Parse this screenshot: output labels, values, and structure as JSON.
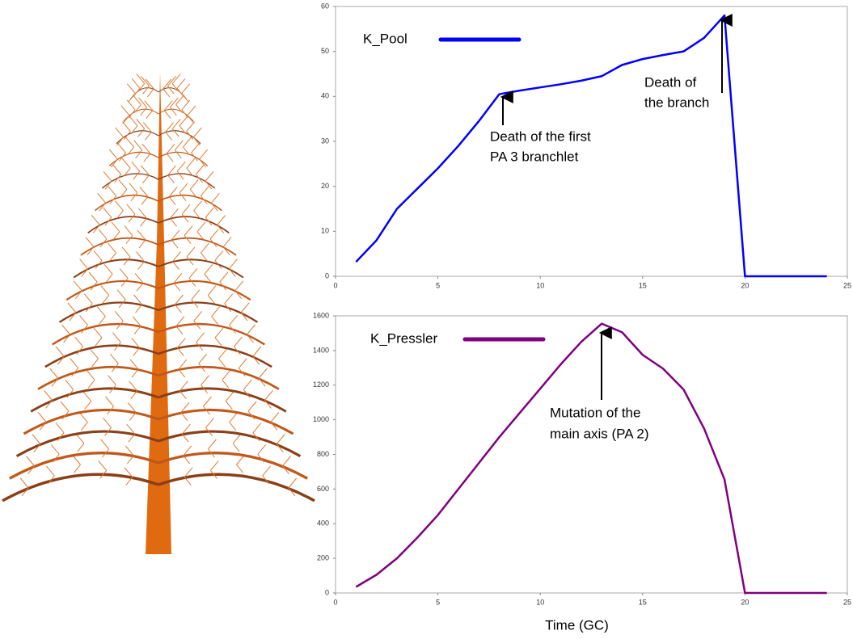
{
  "chart_data": [
    {
      "type": "line",
      "x": [
        1,
        2,
        3,
        4,
        5,
        6,
        7,
        8,
        9,
        10,
        11,
        12,
        13,
        14,
        15,
        16,
        17,
        18,
        19,
        20,
        21,
        22,
        23,
        24
      ],
      "series": [
        {
          "name": "K_Pool",
          "color": "#0000ff",
          "values": [
            3.2,
            8,
            15,
            19.5,
            24,
            29,
            34.5,
            40.5,
            41.3,
            42,
            42.7,
            43.5,
            44.5,
            47,
            48.3,
            49.2,
            50,
            53,
            58,
            0,
            0,
            0,
            0,
            0
          ]
        }
      ],
      "xlim": [
        0,
        25
      ],
      "xticks": [
        0,
        5,
        10,
        15,
        20,
        25
      ],
      "ylim": [
        0,
        60
      ],
      "yticks": [
        0,
        10,
        20,
        30,
        40,
        50,
        60
      ],
      "annotations": [
        {
          "lines": [
            "Death of the first",
            "PA 3 branchlet"
          ]
        },
        {
          "lines": [
            "Death of",
            "the branch"
          ]
        }
      ]
    },
    {
      "type": "line",
      "x": [
        1,
        2,
        3,
        4,
        5,
        6,
        7,
        8,
        9,
        10,
        11,
        12,
        13,
        14,
        15,
        16,
        17,
        18,
        19,
        20,
        21,
        22,
        23,
        24
      ],
      "series": [
        {
          "name": "K_Pressler",
          "color": "#800080",
          "values": [
            35,
            105,
            200,
            320,
            450,
            600,
            750,
            900,
            1040,
            1180,
            1320,
            1450,
            1555,
            1505,
            1375,
            1295,
            1175,
            950,
            655,
            0,
            0,
            0,
            0,
            0
          ]
        }
      ],
      "xlim": [
        0,
        25
      ],
      "xticks": [
        0,
        5,
        10,
        15,
        20,
        25
      ],
      "ylim": [
        0,
        1600
      ],
      "yticks": [
        0,
        200,
        400,
        600,
        800,
        1000,
        1200,
        1400,
        1600
      ],
      "xlabel": "Time (GC)",
      "annotations": [
        {
          "lines": [
            "Mutation of the",
            "main axis (PA 2)"
          ]
        }
      ]
    }
  ]
}
